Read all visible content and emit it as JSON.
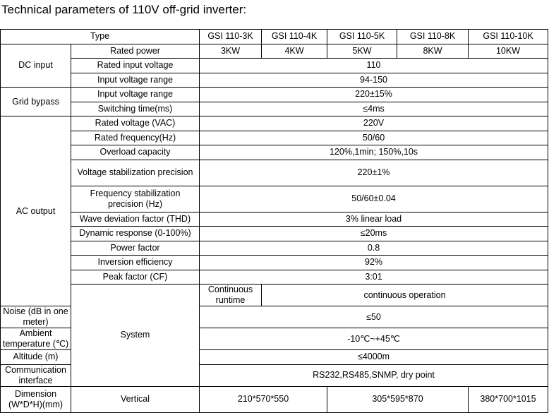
{
  "title": "Technical parameters of 110V off-grid inverter:",
  "table": {
    "type_label": "Type",
    "models": [
      "GSI 110-3K",
      "GSI 110-4K",
      "GSI 110-5K",
      "GSI 110-8K",
      "GSI 110-10K"
    ],
    "dc_input": {
      "group": "DC input",
      "rated_power_label": "Rated power",
      "rated_power_values": [
        "3KW",
        "4KW",
        "5KW",
        "8KW",
        "10KW"
      ],
      "rated_input_voltage_label": "Rated input voltage",
      "rated_input_voltage_value": "110",
      "input_voltage_range_label": "Input voltage range",
      "input_voltage_range_value": "94-150"
    },
    "grid_bypass": {
      "group": "Grid bypass",
      "input_voltage_range_label": "Input voltage range",
      "input_voltage_range_value": "220±15%",
      "switching_time_label": "Switching time(ms)",
      "switching_time_value": "≤4ms"
    },
    "ac_output": {
      "group": "AC output",
      "rated_voltage_label": "Rated voltage (VAC)",
      "rated_voltage_value": "220V",
      "rated_frequency_label": "Rated frequency(Hz)",
      "rated_frequency_value": "50/60",
      "overload_label": "Overload capacity",
      "overload_value": "120%,1min; 150%,10s",
      "voltage_stab_label": "Voltage stabilization precision",
      "voltage_stab_value": "220±1%",
      "freq_stab_label": "Frequency stabilization precision (Hz)",
      "freq_stab_value": "50/60±0.04",
      "thd_label": "Wave deviation factor (THD)",
      "thd_value": "3% linear load",
      "dynamic_label": "Dynamic response (0-100%)",
      "dynamic_value": "≤20ms",
      "pf_label": "Power factor",
      "pf_value": "0.8",
      "efficiency_label": "Inversion efficiency",
      "efficiency_value": "92%",
      "peak_label": "Peak factor (CF)",
      "peak_value": "3:01"
    },
    "system": {
      "group": "System",
      "runtime_label": "Continuous runtime",
      "runtime_value": "continuous operation",
      "noise_label": "Noise (dB in one meter)",
      "noise_value": "≤50",
      "ambient_label": "Ambient temperature (℃)",
      "ambient_value": "-10℃~+45℃",
      "altitude_label": "Altitude (m)",
      "altitude_value": "≤4000m",
      "comm_label": "Communication interface",
      "comm_value": "RS232,RS485,SNMP, dry point"
    },
    "dimension": {
      "group": "Dimension (W*D*H)(mm)",
      "orientation_label": "Vertical",
      "values": [
        "210*570*550",
        "305*595*870",
        "380*700*1015"
      ]
    }
  }
}
